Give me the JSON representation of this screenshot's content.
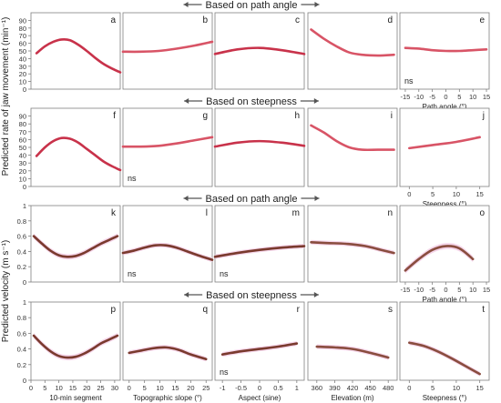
{
  "figure": {
    "row_headers": [
      "Based on path angle",
      "Based on steepness",
      "Based on path angle",
      "Based on steepness"
    ],
    "ylabel_top": "Predicted rate of jaw movement (min⁻¹)",
    "ylabel_bottom": "Predicted velocity (m s⁻¹)",
    "ns_label": "ns"
  },
  "colors": {
    "jaw": "#c8324a",
    "jaw_light": "#d85466",
    "velocity": "#7a3a2e",
    "velocity_light": "#8a4d3f",
    "ci_band": "#f3cfe6",
    "frame": "#7f7f7f",
    "arrow": "#555555"
  },
  "chart_data": [
    {
      "id": "a",
      "type": "line",
      "row": 0,
      "col": 0,
      "xlim": [
        0,
        32
      ],
      "ylim": [
        0,
        100
      ],
      "x": [
        2,
        5,
        8,
        11,
        14,
        17,
        20,
        23,
        26,
        29,
        32
      ],
      "y": [
        47,
        56,
        62,
        65,
        64,
        58,
        50,
        41,
        33,
        27,
        22
      ],
      "ci": 0,
      "ns": false
    },
    {
      "id": "b",
      "type": "line",
      "row": 0,
      "col": 1,
      "xlim": [
        0,
        25
      ],
      "ylim": [
        0,
        100
      ],
      "x": [
        0,
        5,
        10,
        15,
        20,
        25
      ],
      "y": [
        49,
        49,
        50,
        53,
        57,
        62
      ],
      "ci": 0,
      "ns": false
    },
    {
      "id": "c",
      "type": "line",
      "row": 0,
      "col": 2,
      "xlim": [
        -1,
        1
      ],
      "ylim": [
        0,
        100
      ],
      "x": [
        -1,
        -0.5,
        0,
        0.5,
        1
      ],
      "y": [
        46,
        52,
        54,
        51,
        46
      ],
      "ci": 0,
      "ns": false
    },
    {
      "id": "d",
      "type": "line",
      "row": 0,
      "col": 3,
      "xlim": [
        350,
        490
      ],
      "ylim": [
        0,
        100
      ],
      "x": [
        355,
        375,
        395,
        415,
        435,
        460,
        485
      ],
      "y": [
        78,
        66,
        56,
        48,
        45,
        44,
        45
      ],
      "ci": 0,
      "ns": false
    },
    {
      "id": "e",
      "type": "line",
      "row": 0,
      "col": 4,
      "xlim": [
        -17,
        16
      ],
      "ylim": [
        0,
        100
      ],
      "x": [
        -15,
        -10,
        -5,
        0,
        5,
        10,
        15
      ],
      "y": [
        54,
        53,
        51,
        50,
        50,
        51,
        52
      ],
      "ci": 0,
      "ns": true,
      "xticks": [
        -15,
        -10,
        -5,
        0,
        5,
        10,
        15
      ],
      "xticklabels": [
        "-15",
        "-10",
        "-5",
        "0",
        "5",
        "10",
        "15"
      ],
      "xlabel": "Path angle (°)"
    },
    {
      "id": "f",
      "type": "line",
      "row": 1,
      "col": 0,
      "xlim": [
        0,
        32
      ],
      "ylim": [
        0,
        100
      ],
      "x": [
        2,
        5,
        8,
        11,
        14,
        17,
        20,
        23,
        26,
        29,
        32
      ],
      "y": [
        39,
        50,
        58,
        62,
        61,
        56,
        48,
        40,
        32,
        26,
        21
      ],
      "ci": 0,
      "ns": false
    },
    {
      "id": "g",
      "type": "line",
      "row": 1,
      "col": 1,
      "xlim": [
        0,
        25
      ],
      "ylim": [
        0,
        100
      ],
      "x": [
        0,
        5,
        10,
        15,
        20,
        25
      ],
      "y": [
        51,
        51,
        52,
        55,
        59,
        63
      ],
      "ci": 0,
      "ns": true
    },
    {
      "id": "h",
      "type": "line",
      "row": 1,
      "col": 2,
      "xlim": [
        -1,
        1
      ],
      "ylim": [
        0,
        100
      ],
      "x": [
        -1,
        -0.5,
        0,
        0.5,
        1
      ],
      "y": [
        51,
        56,
        58,
        56,
        52
      ],
      "ci": 0,
      "ns": false
    },
    {
      "id": "i",
      "type": "line",
      "row": 1,
      "col": 3,
      "xlim": [
        350,
        490
      ],
      "ylim": [
        0,
        100
      ],
      "x": [
        355,
        375,
        395,
        415,
        435,
        460,
        485
      ],
      "y": [
        78,
        69,
        58,
        50,
        47,
        47,
        47
      ],
      "ci": 0,
      "ns": false
    },
    {
      "id": "j",
      "type": "line",
      "row": 1,
      "col": 4,
      "xlim": [
        -2,
        17
      ],
      "ylim": [
        0,
        100
      ],
      "x": [
        0,
        5,
        10,
        15
      ],
      "y": [
        49,
        53,
        57,
        63
      ],
      "ci": 0,
      "ns": false,
      "xticks": [
        0,
        5,
        10,
        15
      ],
      "xticklabels": [
        "0",
        "5",
        "10",
        "15"
      ],
      "xlabel": "Steepness (°)"
    },
    {
      "id": "k",
      "type": "line",
      "row": 2,
      "col": 0,
      "xlim": [
        0,
        32
      ],
      "ylim": [
        0,
        1
      ],
      "x": [
        1,
        4,
        7,
        10,
        13,
        16,
        19,
        22,
        25,
        28,
        31
      ],
      "y": [
        0.6,
        0.5,
        0.41,
        0.35,
        0.33,
        0.34,
        0.38,
        0.44,
        0.5,
        0.55,
        0.6
      ],
      "ci": 0.035,
      "ns": false
    },
    {
      "id": "l",
      "type": "line",
      "row": 2,
      "col": 1,
      "xlim": [
        0,
        25
      ],
      "ylim": [
        0,
        1
      ],
      "x": [
        0,
        3,
        6,
        9,
        12,
        15,
        18,
        21,
        25
      ],
      "y": [
        0.38,
        0.41,
        0.45,
        0.48,
        0.48,
        0.45,
        0.4,
        0.35,
        0.29
      ],
      "ci": 0.03,
      "ns": true
    },
    {
      "id": "m",
      "type": "line",
      "row": 2,
      "col": 2,
      "xlim": [
        -1,
        1
      ],
      "ylim": [
        0,
        1
      ],
      "x": [
        -1,
        -0.5,
        0,
        0.5,
        1
      ],
      "y": [
        0.33,
        0.38,
        0.42,
        0.45,
        0.47
      ],
      "ci": 0.03,
      "ns": true
    },
    {
      "id": "n",
      "type": "line",
      "row": 2,
      "col": 3,
      "xlim": [
        350,
        490
      ],
      "ylim": [
        0,
        1
      ],
      "x": [
        355,
        380,
        410,
        440,
        465,
        485
      ],
      "y": [
        0.52,
        0.51,
        0.5,
        0.47,
        0.42,
        0.38
      ],
      "ci": 0.03,
      "ns": false
    },
    {
      "id": "o",
      "type": "line",
      "row": 2,
      "col": 4,
      "xlim": [
        -17,
        16
      ],
      "ylim": [
        0,
        1
      ],
      "x": [
        -15,
        -10,
        -5,
        0,
        5,
        10
      ],
      "y": [
        0.15,
        0.3,
        0.42,
        0.47,
        0.44,
        0.3
      ],
      "ci": 0.04,
      "ns": false,
      "xticks": [
        -15,
        -10,
        -5,
        0,
        5,
        10,
        15
      ],
      "xticklabels": [
        "-15",
        "-10",
        "-5",
        "0",
        "5",
        "10",
        "15"
      ],
      "xlabel": "Path angle (°)"
    },
    {
      "id": "p",
      "type": "line",
      "row": 3,
      "col": 0,
      "xlim": [
        0,
        32
      ],
      "ylim": [
        0,
        1
      ],
      "x": [
        1,
        4,
        7,
        10,
        13,
        16,
        19,
        22,
        25,
        28,
        31
      ],
      "y": [
        0.57,
        0.46,
        0.37,
        0.31,
        0.29,
        0.3,
        0.34,
        0.4,
        0.47,
        0.52,
        0.57
      ],
      "ci": 0.035,
      "ns": false,
      "xticks": [
        0,
        5,
        10,
        15,
        20,
        25,
        30
      ],
      "xticklabels": [
        "0",
        "5",
        "10",
        "15",
        "20",
        "25",
        "30"
      ],
      "xlabel": "10-min segment"
    },
    {
      "id": "q",
      "type": "line",
      "row": 3,
      "col": 1,
      "xlim": [
        -2,
        27
      ],
      "ylim": [
        0,
        1
      ],
      "x": [
        0,
        4,
        8,
        12,
        16,
        20,
        25
      ],
      "y": [
        0.35,
        0.38,
        0.41,
        0.42,
        0.39,
        0.33,
        0.27
      ],
      "ci": 0.03,
      "ns": false,
      "xticks": [
        0,
        5,
        10,
        15,
        20,
        25
      ],
      "xticklabels": [
        "0",
        "5",
        "10",
        "15",
        "20",
        "25"
      ],
      "xlabel": "Topographic slope (°)"
    },
    {
      "id": "r",
      "type": "line",
      "row": 3,
      "col": 2,
      "xlim": [
        -1.2,
        1.2
      ],
      "ylim": [
        0,
        1
      ],
      "x": [
        -1,
        -0.5,
        0,
        0.5,
        1
      ],
      "y": [
        0.33,
        0.37,
        0.4,
        0.43,
        0.47
      ],
      "ci": 0.03,
      "ns": true,
      "xticks": [
        -1,
        -0.5,
        0,
        0.5,
        1
      ],
      "xticklabels": [
        "-1",
        "-0.5",
        "0",
        "0.5",
        "1"
      ],
      "xlabel": "Aspect (sine)"
    },
    {
      "id": "s",
      "type": "line",
      "row": 3,
      "col": 3,
      "xlim": [
        345,
        495
      ],
      "ylim": [
        0,
        1
      ],
      "x": [
        360,
        390,
        420,
        450,
        480
      ],
      "y": [
        0.43,
        0.42,
        0.4,
        0.35,
        0.29
      ],
      "ci": 0.03,
      "ns": false,
      "xticks": [
        360,
        390,
        420,
        450,
        480
      ],
      "xticklabels": [
        "360",
        "390",
        "420",
        "450",
        "480"
      ],
      "xlabel": "Elevation (m)"
    },
    {
      "id": "t",
      "type": "line",
      "row": 3,
      "col": 4,
      "xlim": [
        -2,
        17
      ],
      "ylim": [
        0,
        1
      ],
      "x": [
        0,
        3,
        6,
        9,
        12,
        15
      ],
      "y": [
        0.48,
        0.44,
        0.37,
        0.28,
        0.18,
        0.08
      ],
      "ci": 0.03,
      "ns": false,
      "xticks": [
        0,
        5,
        10,
        15
      ],
      "xticklabels": [
        "0",
        "5",
        "10",
        "15"
      ],
      "xlabel": "Steepness (°)"
    }
  ],
  "y_axes": [
    {
      "row": 0,
      "ticks": [
        0,
        10,
        20,
        30,
        40,
        50,
        60,
        70,
        80,
        90
      ],
      "labels": [
        "0",
        "10",
        "20",
        "30",
        "40",
        "50",
        "60",
        "70",
        "80",
        "90"
      ]
    },
    {
      "row": 1,
      "ticks": [
        0,
        10,
        20,
        30,
        40,
        50,
        60,
        70,
        80,
        90
      ],
      "labels": [
        "0",
        "10",
        "20",
        "30",
        "40",
        "50",
        "60",
        "70",
        "80",
        "90"
      ]
    },
    {
      "row": 2,
      "ticks": [
        0,
        0.2,
        0.4,
        0.6,
        0.8,
        1
      ],
      "labels": [
        "0",
        "0.2",
        "0.4",
        "0.6",
        "0.8",
        "1"
      ]
    },
    {
      "row": 3,
      "ticks": [
        0,
        0.2,
        0.4,
        0.6,
        0.8,
        1
      ],
      "labels": [
        "0",
        "0.2",
        "0.4",
        "0.6",
        "0.8",
        "1"
      ]
    }
  ]
}
